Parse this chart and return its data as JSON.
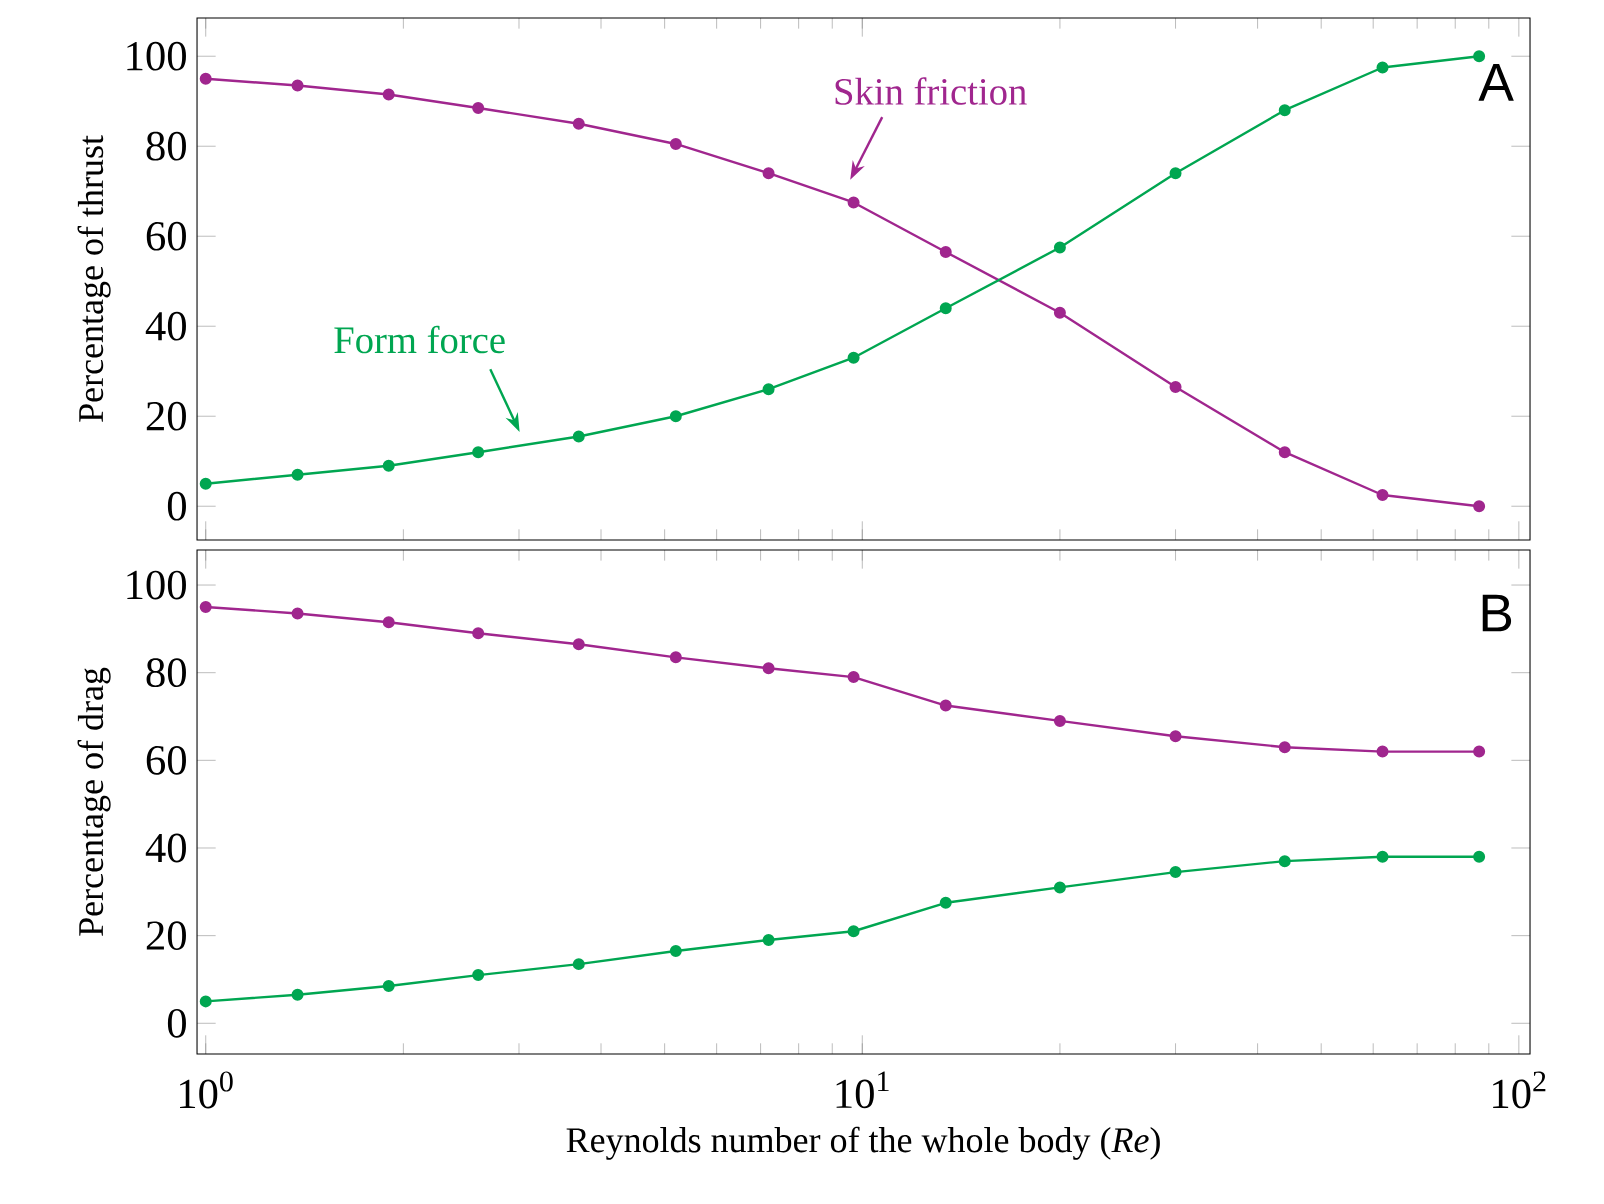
{
  "chart_data": [
    {
      "type": "line",
      "ylabel": "Percentage of thrust",
      "log": "x",
      "xlim": [
        0.97,
        104
      ],
      "ylim": [
        -7.5,
        108.5
      ],
      "xticks": [
        {
          "value": 1,
          "label": null
        },
        {
          "value": 10,
          "label": null
        },
        {
          "value": 100,
          "label": null
        }
      ],
      "yticks": [
        0,
        20,
        40,
        60,
        80,
        100
      ],
      "tick_labels": "y",
      "grid": false,
      "legend": false,
      "marker": "circle",
      "line_style": "solid",
      "x": [
        1,
        1.38,
        1.9,
        2.6,
        3.7,
        5.2,
        7.2,
        9.7,
        13.4,
        20,
        30,
        44,
        62,
        87
      ],
      "annotations": [
        "A"
      ],
      "series": [
        {
          "name": "Skin friction",
          "color": "#a0268e",
          "values": [
            95,
            93.5,
            91.5,
            88.5,
            85,
            80.5,
            74,
            67.5,
            56.5,
            43,
            26.5,
            12,
            2.5,
            0
          ]
        },
        {
          "name": "Form force",
          "color": "#00a651",
          "values": [
            5,
            7,
            9,
            12,
            15.5,
            20,
            26,
            33,
            44,
            57.5,
            74,
            88,
            97.5,
            100
          ]
        }
      ]
    },
    {
      "type": "line",
      "ylabel": "Percentage of drag",
      "xlabel": "Reynolds number of the whole body (*Re*)",
      "log": "x",
      "xlim": [
        0.97,
        104
      ],
      "ylim": [
        -7,
        108
      ],
      "xticks": [
        {
          "value": 1,
          "label": "10$^{0}$"
        },
        {
          "value": 10,
          "label": "10$^{1}$"
        },
        {
          "value": 100,
          "label": "10$^{2}$"
        }
      ],
      "yticks": [
        0,
        20,
        40,
        60,
        80,
        100
      ],
      "grid": false,
      "legend": false,
      "marker": "circle",
      "line_style": "solid",
      "x": [
        1,
        1.38,
        1.9,
        2.6,
        3.7,
        5.2,
        7.2,
        9.7,
        13.4,
        20,
        30,
        44,
        62,
        87
      ],
      "annotations": [
        "B"
      ],
      "series": [
        {
          "color": "#a0268e",
          "values": [
            95,
            93.5,
            91.5,
            89,
            86.5,
            83.5,
            81,
            79,
            72.5,
            69,
            65.5,
            63,
            62,
            62
          ]
        },
        {
          "color": "#00a651",
          "values": [
            5,
            6.5,
            8.5,
            11,
            13.5,
            16.5,
            19,
            21,
            27.5,
            31,
            34.5,
            37,
            38,
            38
          ]
        }
      ]
    }
  ]
}
